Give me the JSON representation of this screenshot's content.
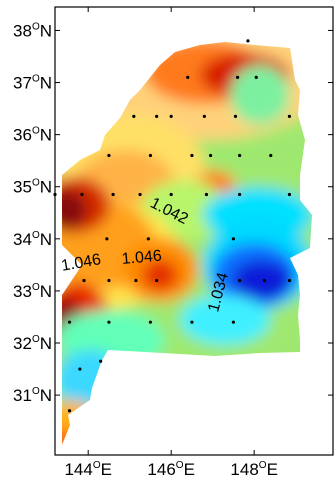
{
  "chart_data": {
    "type": "heatmap",
    "title": "",
    "xlabel": "",
    "ylabel": "",
    "x_ticks": [
      "144",
      "146",
      "148"
    ],
    "y_ticks": [
      "38",
      "37",
      "36",
      "35",
      "34",
      "33",
      "32",
      "31"
    ],
    "tick_degree_symbol": "O",
    "x_hemisphere": "E",
    "y_hemisphere": "N",
    "x_range_deg": [
      143.2,
      149.9
    ],
    "y_range_deg": [
      29.85,
      38.45
    ],
    "contour_labels": [
      {
        "text": "1.042",
        "lon": 145.9,
        "lat": 34.45,
        "angle_deg": 27
      },
      {
        "text": "1.046",
        "lon": 143.85,
        "lat": 33.45,
        "angle_deg": -10
      },
      {
        "text": "1.046",
        "lon": 145.3,
        "lat": 33.55,
        "angle_deg": -5
      },
      {
        "text": "1.034",
        "lon": 147.25,
        "lat": 32.95,
        "angle_deg": -75
      }
    ],
    "stations": [
      [
        147.85,
        37.8
      ],
      [
        146.4,
        37.1
      ],
      [
        147.6,
        37.1
      ],
      [
        148.05,
        37.1
      ],
      [
        145.1,
        36.35
      ],
      [
        145.65,
        36.35
      ],
      [
        146.0,
        36.35
      ],
      [
        146.8,
        36.35
      ],
      [
        147.55,
        36.35
      ],
      [
        148.85,
        36.35
      ],
      [
        144.5,
        35.6
      ],
      [
        145.5,
        35.6
      ],
      [
        146.5,
        35.6
      ],
      [
        146.95,
        35.6
      ],
      [
        147.65,
        35.6
      ],
      [
        148.4,
        35.6
      ],
      [
        143.2,
        34.85
      ],
      [
        143.85,
        34.85
      ],
      [
        144.6,
        34.85
      ],
      [
        145.25,
        34.85
      ],
      [
        146.0,
        34.85
      ],
      [
        146.85,
        34.85
      ],
      [
        147.65,
        34.85
      ],
      [
        148.85,
        34.85
      ],
      [
        144.45,
        34.0
      ],
      [
        145.45,
        34.0
      ],
      [
        147.5,
        34.0
      ],
      [
        143.9,
        33.2
      ],
      [
        144.5,
        33.2
      ],
      [
        145.15,
        33.2
      ],
      [
        145.65,
        33.2
      ],
      [
        147.65,
        33.2
      ],
      [
        148.25,
        33.2
      ],
      [
        148.85,
        33.2
      ],
      [
        143.55,
        32.4
      ],
      [
        144.5,
        32.4
      ],
      [
        145.5,
        32.4
      ],
      [
        146.5,
        32.4
      ],
      [
        147.5,
        32.4
      ],
      [
        143.8,
        31.5
      ],
      [
        144.3,
        31.65
      ],
      [
        143.55,
        30.7
      ]
    ]
  }
}
